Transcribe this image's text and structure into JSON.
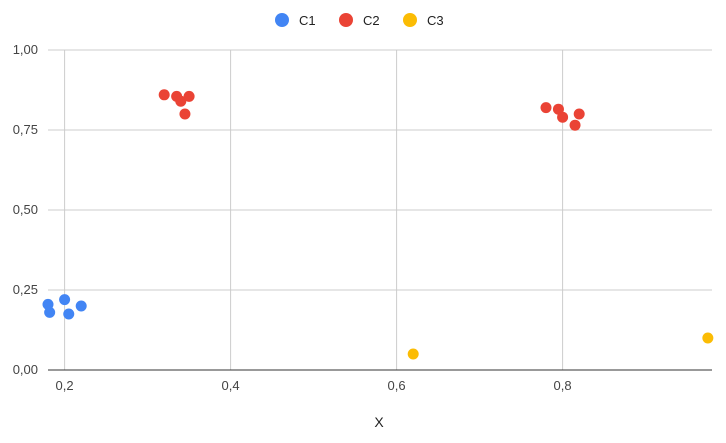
{
  "chart_data": {
    "type": "scatter",
    "title": "",
    "xlabel": "X",
    "ylabel": "",
    "xlim": [
      0.18,
      0.98
    ],
    "ylim": [
      0,
      1
    ],
    "x_ticks": [
      0.2,
      0.4,
      0.6,
      0.8
    ],
    "x_tick_labels": [
      "0,2",
      "0,4",
      "0,6",
      "0,8"
    ],
    "y_ticks": [
      0,
      0.25,
      0.5,
      0.75,
      1
    ],
    "y_tick_labels": [
      "0,00",
      "0,25",
      "0,50",
      "0,75",
      "1,00"
    ],
    "grid": true,
    "legend_position": "top-center",
    "series": [
      {
        "name": "C1",
        "color": "#4285F4",
        "points": [
          {
            "x": 0.18,
            "y": 0.205
          },
          {
            "x": 0.182,
            "y": 0.18
          },
          {
            "x": 0.2,
            "y": 0.22
          },
          {
            "x": 0.205,
            "y": 0.175
          },
          {
            "x": 0.22,
            "y": 0.2
          }
        ]
      },
      {
        "name": "C2",
        "color": "#EA4335",
        "points": [
          {
            "x": 0.32,
            "y": 0.86
          },
          {
            "x": 0.335,
            "y": 0.855
          },
          {
            "x": 0.34,
            "y": 0.84
          },
          {
            "x": 0.345,
            "y": 0.8
          },
          {
            "x": 0.35,
            "y": 0.855
          },
          {
            "x": 0.78,
            "y": 0.82
          },
          {
            "x": 0.795,
            "y": 0.815
          },
          {
            "x": 0.8,
            "y": 0.79
          },
          {
            "x": 0.815,
            "y": 0.765
          },
          {
            "x": 0.82,
            "y": 0.8
          }
        ]
      },
      {
        "name": "C3",
        "color": "#FBBC04",
        "points": [
          {
            "x": 0.62,
            "y": 0.05
          },
          {
            "x": 0.975,
            "y": 0.1
          }
        ]
      }
    ]
  }
}
